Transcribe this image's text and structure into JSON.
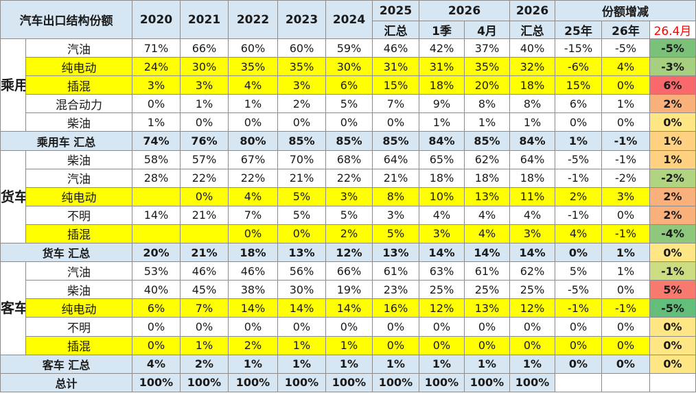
{
  "title": "汽车出口结构份额",
  "header": {
    "years_single": [
      "2020",
      "2021",
      "2022",
      "2023",
      "2024"
    ],
    "y2025": "2025",
    "y2025_sub": "汇总",
    "y2026": "2026",
    "y2026_q1": "1季",
    "y2026_apr": "4月",
    "y2026b": "2026",
    "y2026b_sub": "汇总",
    "change": "份额增减",
    "c25": "25年",
    "c26": "26年",
    "c264": "26.4月"
  },
  "colors": {
    "header_bg": "#d6e6f2",
    "highlight": "#ffff00",
    "red_label": "#ff0000"
  },
  "chart_data": {
    "type": "table",
    "columns": [
      "2020",
      "2021",
      "2022",
      "2023",
      "2024",
      "2025 汇总",
      "2026 1季",
      "2026 4月",
      "2026 汇总",
      "25年",
      "26年",
      "26.4月"
    ],
    "groups": [
      {
        "name": "乘用车",
        "rows": [
          {
            "label": "汽油",
            "highlight": false,
            "values": [
              "71%",
              "66%",
              "60%",
              "60%",
              "59%",
              "46%",
              "42%",
              "37%",
              "40%",
              "-15%",
              "-5%",
              "-5%"
            ],
            "delta_color": "#7cc17a"
          },
          {
            "label": "纯电动",
            "highlight": true,
            "values": [
              "24%",
              "30%",
              "35%",
              "35%",
              "30%",
              "31%",
              "31%",
              "35%",
              "32%",
              "-6%",
              "4%",
              "-3%"
            ],
            "delta_color": "#a6cf80"
          },
          {
            "label": "插混",
            "highlight": true,
            "values": [
              "3%",
              "3%",
              "4%",
              "3%",
              "6%",
              "15%",
              "18%",
              "20%",
              "18%",
              "15%",
              "0%",
              "6%"
            ],
            "delta_color": "#f8696b"
          },
          {
            "label": "混合动力",
            "highlight": false,
            "values": [
              "0%",
              "1%",
              "1%",
              "2%",
              "5%",
              "7%",
              "9%",
              "8%",
              "8%",
              "6%",
              "1%",
              "2%"
            ],
            "delta_color": "#f9b07b"
          },
          {
            "label": "柴油",
            "highlight": false,
            "values": [
              "1%",
              "0%",
              "0%",
              "0%",
              "0%",
              "0%",
              "1%",
              "1%",
              "1%",
              "0%",
              "0%",
              "0%"
            ],
            "delta_color": "#fde683"
          }
        ],
        "summary": {
          "label": "乘用车 汇总",
          "values": [
            "74%",
            "76%",
            "80%",
            "85%",
            "85%",
            "85%",
            "84%",
            "85%",
            "84%",
            "1%",
            "-1%",
            "1%"
          ],
          "delta_color": "#fdd17f"
        }
      },
      {
        "name": "货车",
        "rows": [
          {
            "label": "柴油",
            "highlight": false,
            "values": [
              "58%",
              "57%",
              "67%",
              "70%",
              "68%",
              "64%",
              "65%",
              "62%",
              "64%",
              "-5%",
              "-1%",
              "1%"
            ],
            "delta_color": "#fdd17f"
          },
          {
            "label": "汽油",
            "highlight": false,
            "values": [
              "28%",
              "22%",
              "22%",
              "21%",
              "22%",
              "21%",
              "18%",
              "18%",
              "18%",
              "-1%",
              "-2%",
              "-2%"
            ],
            "delta_color": "#b0d480"
          },
          {
            "label": "纯电动",
            "highlight": true,
            "values": [
              "",
              "0%",
              "4%",
              "5%",
              "3%",
              "8%",
              "10%",
              "13%",
              "11%",
              "2%",
              "3%",
              "2%"
            ],
            "delta_color": "#f9b07b"
          },
          {
            "label": "不明",
            "highlight": false,
            "values": [
              "14%",
              "21%",
              "7%",
              "5%",
              "5%",
              "3%",
              "4%",
              "4%",
              "4%",
              "-1%",
              "0%",
              "2%"
            ],
            "delta_color": "#f9b07b"
          },
          {
            "label": "插混",
            "highlight": true,
            "values": [
              "",
              "",
              "0%",
              "0%",
              "2%",
              "5%",
              "3%",
              "4%",
              "3%",
              "4%",
              "-1%",
              "-4%"
            ],
            "delta_color": "#8fc87c"
          }
        ],
        "summary": {
          "label": "货车 汇总",
          "values": [
            "20%",
            "21%",
            "18%",
            "13%",
            "12%",
            "13%",
            "14%",
            "14%",
            "14%",
            "0%",
            "1%",
            "0%"
          ],
          "delta_color": "#fde683"
        }
      },
      {
        "name": "客车",
        "rows": [
          {
            "label": "汽油",
            "highlight": false,
            "values": [
              "53%",
              "46%",
              "46%",
              "56%",
              "66%",
              "61%",
              "63%",
              "61%",
              "62%",
              "5%",
              "1%",
              "-1%"
            ],
            "delta_color": "#cbdc81"
          },
          {
            "label": "柴油",
            "highlight": false,
            "values": [
              "40%",
              "45%",
              "38%",
              "30%",
              "19%",
              "23%",
              "25%",
              "25%",
              "25%",
              "-5%",
              "0%",
              "5%"
            ],
            "delta_color": "#f8796d"
          },
          {
            "label": "纯电动",
            "highlight": true,
            "values": [
              "6%",
              "7%",
              "14%",
              "14%",
              "14%",
              "16%",
              "12%",
              "13%",
              "12%",
              "-1%",
              "-1%",
              "-5%"
            ],
            "delta_color": "#63be7b"
          },
          {
            "label": "不明",
            "highlight": false,
            "values": [
              "0%",
              "0%",
              "0%",
              "0%",
              "0%",
              "0%",
              "0%",
              "0%",
              "0%",
              "0%",
              "0%",
              "0%"
            ],
            "delta_color": "#fde683"
          },
          {
            "label": "插混",
            "highlight": true,
            "values": [
              "0%",
              "1%",
              "2%",
              "1%",
              "1%",
              "0%",
              "0%",
              "0%",
              "0%",
              "0%",
              "0%",
              "0%"
            ],
            "delta_color": "#fde683"
          }
        ],
        "summary": {
          "label": "客车 汇总",
          "values": [
            "4%",
            "2%",
            "1%",
            "1%",
            "1%",
            "1%",
            "1%",
            "1%",
            "1%",
            "0%",
            "0%",
            "0%"
          ],
          "delta_color": "#fde683"
        }
      }
    ],
    "total": {
      "label": "总计",
      "values": [
        "100%",
        "100%",
        "100%",
        "100%",
        "100%",
        "100%",
        "100%",
        "100%",
        "100%",
        "",
        "",
        ""
      ]
    }
  }
}
